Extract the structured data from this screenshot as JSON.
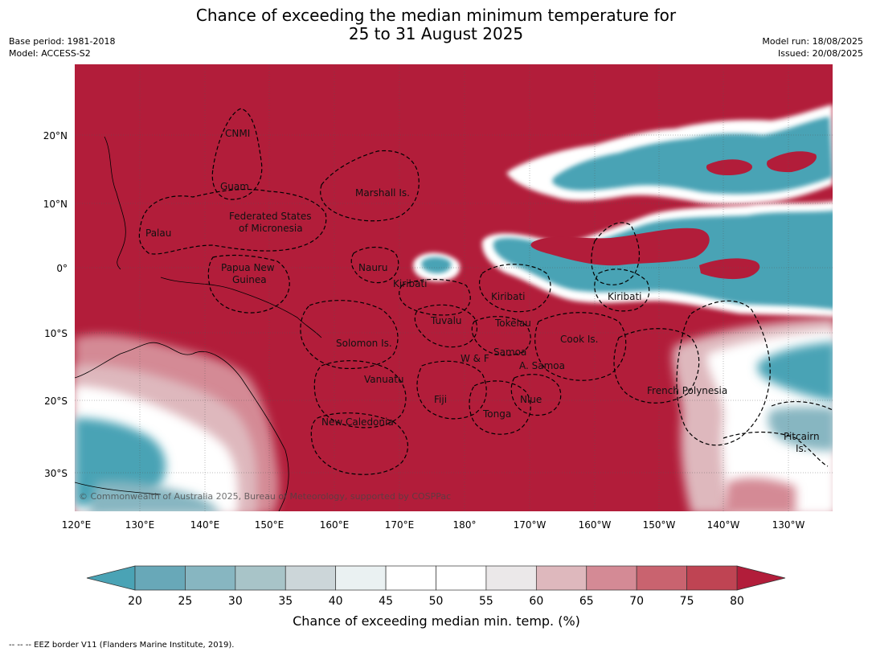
{
  "title": {
    "line1": "Chance of exceeding the median minimum temperature for",
    "line2": "25 to 31 August 2025"
  },
  "meta": {
    "base_period": "Base period: 1981-2018",
    "model": "Model: ACCESS-S2",
    "model_run": "Model run: 18/08/2025",
    "issued": "Issued: 20/08/2025"
  },
  "map": {
    "copyright": "© Commonwealth of Australia 2025, Bureau of Meteorology, supported by COSPPac",
    "lon_labels": [
      "120°E",
      "130°E",
      "140°E",
      "150°E",
      "160°E",
      "170°E",
      "180°",
      "170°W",
      "160°W",
      "150°W",
      "140°W",
      "130°W"
    ],
    "lat_labels": [
      "20°N",
      "10°N",
      "0°",
      "10°S",
      "20°S",
      "30°S"
    ],
    "regions": [
      {
        "name": "CNMI"
      },
      {
        "name": "Guam"
      },
      {
        "name": "Marshall Is."
      },
      {
        "name": "Federated States"
      },
      {
        "name": "of Micronesia"
      },
      {
        "name": "Palau"
      },
      {
        "name": "Papua New"
      },
      {
        "name": "Guinea"
      },
      {
        "name": "Nauru"
      },
      {
        "name": "Kiribati"
      },
      {
        "name": "Kiribati"
      },
      {
        "name": "Kiribati"
      },
      {
        "name": "Tuvalu"
      },
      {
        "name": "Tokelau"
      },
      {
        "name": "Solomon Is."
      },
      {
        "name": "Samoa"
      },
      {
        "name": "W & F"
      },
      {
        "name": "A. Samoa"
      },
      {
        "name": "Cook Is."
      },
      {
        "name": "Vanuatu"
      },
      {
        "name": "Fiji"
      },
      {
        "name": "Niue"
      },
      {
        "name": "French Polynesia"
      },
      {
        "name": "Tonga"
      },
      {
        "name": "New Caledonia"
      },
      {
        "name": "Pitcairn"
      },
      {
        "name": "Is."
      }
    ]
  },
  "colorbar": {
    "label": "Chance of exceeding median min. temp. (%)",
    "ticks": [
      "20",
      "25",
      "30",
      "35",
      "40",
      "45",
      "50",
      "55",
      "60",
      "65",
      "70",
      "75",
      "80"
    ],
    "colors": {
      "below": "#4aa3b5",
      "bins": [
        "#68a8b8",
        "#87b6c1",
        "#a8c4c8",
        "#ccd6d9",
        "#eaf1f2",
        "#ffffff",
        "#ffffff",
        "#ebe8e9",
        "#deb8bd",
        "#d48a95",
        "#c9636f",
        "#bf4453"
      ],
      "above": "#b21d3a"
    }
  },
  "footer": "--  --  -- EEZ border V11 (Flanders Marine Institute, 2019)."
}
